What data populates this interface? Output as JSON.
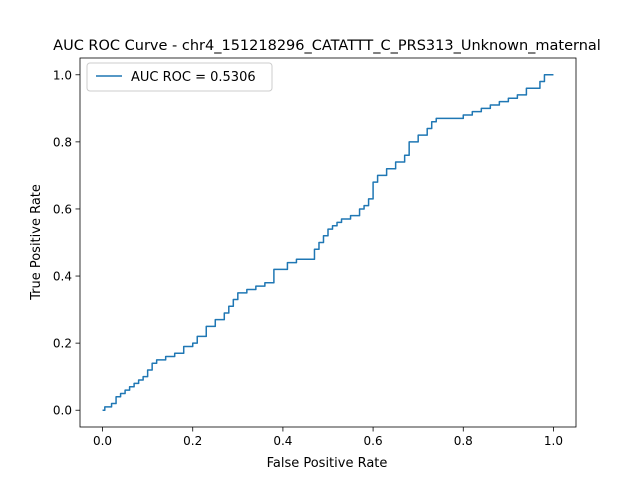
{
  "chart_data": {
    "type": "line",
    "title": "AUC ROC Curve - chr4_151218296_CATATTT_C_PRS313_Unknown_maternal",
    "xlabel": "False Positive Rate",
    "ylabel": "True Positive Rate",
    "xlim": [
      -0.05,
      1.05
    ],
    "ylim": [
      -0.05,
      1.05
    ],
    "xticks": [
      0.0,
      0.2,
      0.4,
      0.6,
      0.8,
      1.0
    ],
    "yticks": [
      0.0,
      0.2,
      0.4,
      0.6,
      0.8,
      1.0
    ],
    "xtick_labels": [
      "0.0",
      "0.2",
      "0.4",
      "0.6",
      "0.8",
      "1.0"
    ],
    "ytick_labels": [
      "0.0",
      "0.2",
      "0.4",
      "0.6",
      "0.8",
      "1.0"
    ],
    "grid": false,
    "legend_position": "upper-left",
    "series": [
      {
        "name": "AUC ROC = 0.5306",
        "color": "#1f77b4",
        "x": [
          0.0,
          0.005,
          0.005,
          0.02,
          0.02,
          0.03,
          0.03,
          0.04,
          0.04,
          0.05,
          0.05,
          0.06,
          0.06,
          0.07,
          0.07,
          0.08,
          0.08,
          0.09,
          0.09,
          0.1,
          0.1,
          0.11,
          0.11,
          0.12,
          0.12,
          0.14,
          0.14,
          0.16,
          0.16,
          0.18,
          0.18,
          0.2,
          0.2,
          0.21,
          0.21,
          0.23,
          0.23,
          0.25,
          0.25,
          0.27,
          0.27,
          0.28,
          0.28,
          0.29,
          0.29,
          0.3,
          0.3,
          0.32,
          0.32,
          0.34,
          0.34,
          0.36,
          0.36,
          0.38,
          0.38,
          0.41,
          0.41,
          0.43,
          0.43,
          0.47,
          0.47,
          0.48,
          0.48,
          0.49,
          0.49,
          0.5,
          0.5,
          0.51,
          0.51,
          0.52,
          0.52,
          0.53,
          0.53,
          0.55,
          0.55,
          0.57,
          0.57,
          0.58,
          0.58,
          0.59,
          0.59,
          0.6,
          0.6,
          0.61,
          0.61,
          0.63,
          0.63,
          0.65,
          0.65,
          0.67,
          0.67,
          0.68,
          0.68,
          0.7,
          0.7,
          0.72,
          0.72,
          0.73,
          0.73,
          0.74,
          0.74,
          0.76,
          0.76,
          0.8,
          0.8,
          0.82,
          0.82,
          0.84,
          0.84,
          0.86,
          0.86,
          0.88,
          0.88,
          0.9,
          0.9,
          0.92,
          0.92,
          0.94,
          0.94,
          0.97,
          0.97,
          0.98,
          0.98,
          1.0
        ],
        "y": [
          0.0,
          0.0,
          0.01,
          0.01,
          0.02,
          0.02,
          0.04,
          0.04,
          0.05,
          0.05,
          0.06,
          0.06,
          0.07,
          0.07,
          0.08,
          0.08,
          0.09,
          0.09,
          0.1,
          0.1,
          0.12,
          0.12,
          0.14,
          0.14,
          0.15,
          0.15,
          0.16,
          0.16,
          0.17,
          0.17,
          0.19,
          0.19,
          0.2,
          0.2,
          0.22,
          0.22,
          0.25,
          0.25,
          0.27,
          0.27,
          0.29,
          0.29,
          0.31,
          0.31,
          0.33,
          0.33,
          0.35,
          0.35,
          0.36,
          0.36,
          0.37,
          0.37,
          0.38,
          0.38,
          0.42,
          0.42,
          0.44,
          0.44,
          0.45,
          0.45,
          0.48,
          0.48,
          0.5,
          0.5,
          0.52,
          0.52,
          0.54,
          0.54,
          0.55,
          0.55,
          0.56,
          0.56,
          0.57,
          0.57,
          0.58,
          0.58,
          0.6,
          0.6,
          0.61,
          0.61,
          0.63,
          0.63,
          0.68,
          0.68,
          0.7,
          0.7,
          0.72,
          0.72,
          0.74,
          0.74,
          0.76,
          0.76,
          0.8,
          0.8,
          0.82,
          0.82,
          0.84,
          0.84,
          0.86,
          0.86,
          0.87,
          0.87,
          0.87,
          0.87,
          0.88,
          0.88,
          0.89,
          0.89,
          0.9,
          0.9,
          0.91,
          0.91,
          0.92,
          0.92,
          0.93,
          0.93,
          0.94,
          0.94,
          0.96,
          0.96,
          0.98,
          0.98,
          1.0,
          1.0
        ]
      }
    ]
  }
}
